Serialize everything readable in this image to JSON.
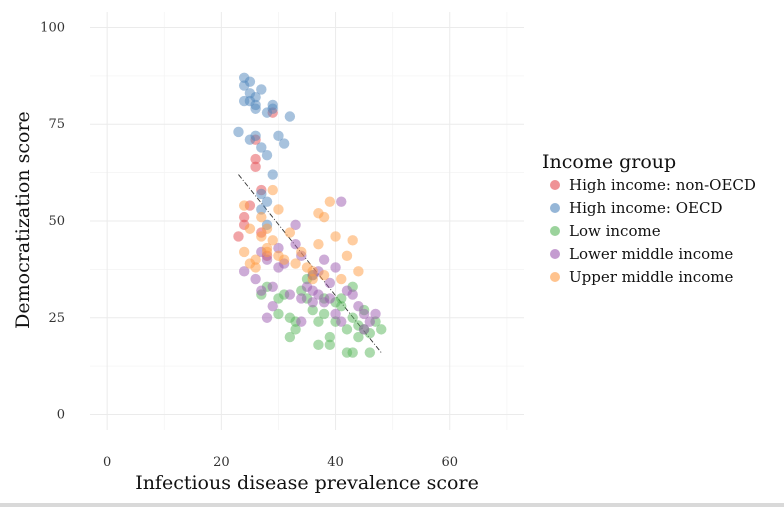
{
  "chart_data": {
    "type": "scatter",
    "title": "",
    "xlabel": "Infectious disease prevalence score",
    "ylabel": "Democratization score",
    "xlim": [
      -3,
      73
    ],
    "ylim": [
      -4,
      104
    ],
    "x_ticks": [
      0,
      20,
      40,
      60
    ],
    "y_ticks": [
      0,
      25,
      50,
      75,
      100
    ],
    "grid": true,
    "legend": {
      "title": "Income group",
      "position": "right",
      "entries": [
        {
          "name": "High income: non-OECD",
          "color": "#e4494f"
        },
        {
          "name": "High income: OECD",
          "color": "#4f85bc"
        },
        {
          "name": "Low income",
          "color": "#58b55a"
        },
        {
          "name": "Lower middle income",
          "color": "#9c5ab0"
        },
        {
          "name": "Upper middle income",
          "color": "#ff9b42"
        }
      ]
    },
    "trend_line": {
      "x": [
        23,
        48
      ],
      "y": [
        62,
        16
      ],
      "style": "dashed"
    },
    "series": [
      {
        "name": "High income: non-OECD",
        "color": "#e4494f",
        "x": [
          23,
          24,
          26,
          26,
          26,
          29,
          27,
          27,
          24,
          25,
          28
        ],
        "y": [
          46,
          51,
          64,
          66,
          71,
          78,
          47,
          58,
          49,
          54,
          41
        ]
      },
      {
        "name": "High income: OECD",
        "color": "#4f85bc",
        "x": [
          24,
          24,
          25,
          25,
          26,
          26,
          27,
          28,
          29,
          29,
          30,
          31,
          32,
          23,
          25,
          27,
          28,
          29,
          27,
          28,
          24,
          25,
          26,
          26,
          27,
          28
        ],
        "y": [
          87,
          85,
          86,
          83,
          82,
          80,
          84,
          78,
          79,
          80,
          72,
          70,
          77,
          73,
          71,
          69,
          67,
          62,
          57,
          55,
          81,
          81,
          79,
          72,
          53,
          49
        ]
      },
      {
        "name": "Low income",
        "color": "#58b55a",
        "x": [
          27,
          28,
          30,
          31,
          32,
          33,
          33,
          34,
          35,
          36,
          36,
          37,
          38,
          38,
          39,
          39,
          40,
          40,
          41,
          41,
          42,
          42,
          43,
          43,
          44,
          44,
          45,
          45,
          46,
          46,
          47,
          48,
          30,
          35,
          37,
          32,
          43
        ],
        "y": [
          31,
          33,
          26,
          31,
          20,
          24,
          22,
          32,
          30,
          27,
          36,
          18,
          26,
          30,
          18,
          20,
          24,
          29,
          28,
          30,
          22,
          16,
          25,
          16,
          20,
          23,
          27,
          22,
          16,
          21,
          24,
          22,
          30,
          35,
          24,
          25,
          33
        ]
      },
      {
        "name": "Lower middle income",
        "color": "#9c5ab0",
        "x": [
          24,
          26,
          27,
          28,
          28,
          29,
          30,
          30,
          31,
          32,
          33,
          33,
          34,
          34,
          35,
          36,
          36,
          37,
          37,
          38,
          38,
          39,
          40,
          40,
          41,
          42,
          43,
          44,
          45,
          45,
          46,
          47,
          39,
          29,
          41,
          34,
          36,
          27
        ],
        "y": [
          37,
          35,
          32,
          25,
          40,
          33,
          38,
          43,
          39,
          31,
          49,
          44,
          30,
          24,
          33,
          29,
          36,
          37,
          31,
          29,
          40,
          34,
          26,
          38,
          55,
          32,
          31,
          28,
          26,
          22,
          24,
          26,
          30,
          28,
          24,
          41,
          32,
          42
        ]
      },
      {
        "name": "Upper middle income",
        "color": "#ff9b42",
        "x": [
          24,
          25,
          26,
          27,
          27,
          28,
          28,
          29,
          29,
          30,
          30,
          31,
          32,
          33,
          34,
          35,
          36,
          37,
          38,
          38,
          39,
          40,
          41,
          42,
          43,
          44,
          37,
          36,
          26,
          24,
          25,
          28
        ],
        "y": [
          42,
          39,
          40,
          46,
          51,
          43,
          48,
          58,
          45,
          41,
          53,
          40,
          47,
          39,
          42,
          38,
          35,
          44,
          51,
          36,
          55,
          46,
          35,
          41,
          45,
          37,
          52,
          37,
          38,
          54,
          48,
          42
        ]
      }
    ]
  }
}
